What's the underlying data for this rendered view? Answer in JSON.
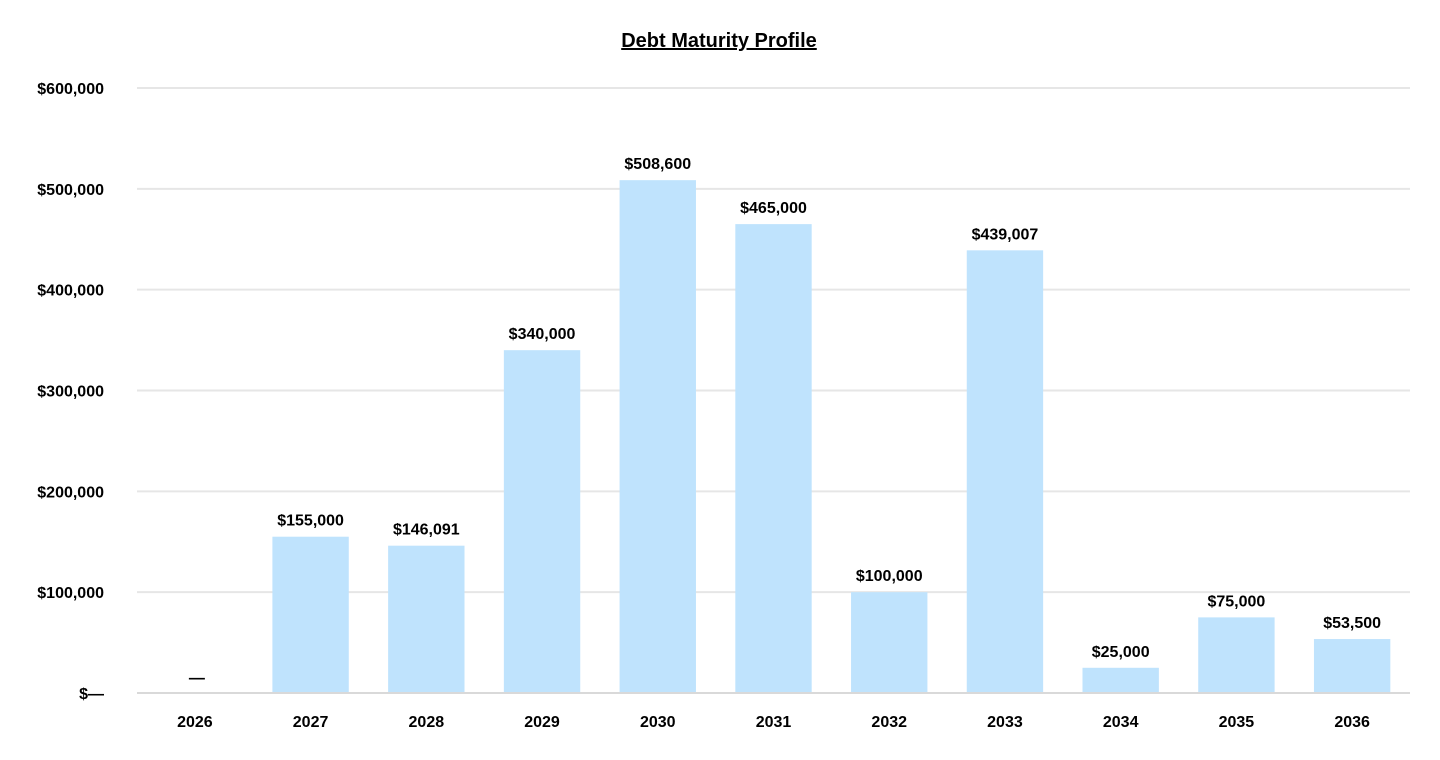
{
  "chart_data": {
    "type": "bar",
    "title": "Debt Maturity Profile",
    "xlabel": "",
    "ylabel": "",
    "categories": [
      "2026",
      "2027",
      "2028",
      "2029",
      "2030",
      "2031",
      "2032",
      "2033",
      "2034",
      "2035",
      "2036"
    ],
    "values": [
      0,
      155000,
      146091,
      340000,
      508600,
      465000,
      100000,
      439007,
      25000,
      75000,
      53500
    ],
    "data_labels": [
      "—",
      "$155,000",
      "$146,091",
      "$340,000",
      "$508,600",
      "$465,000",
      "$100,000",
      "$439,007",
      "$25,000",
      "$75,000",
      "$53,500"
    ],
    "ylim": [
      0,
      600000
    ],
    "yticks": [
      0,
      100000,
      200000,
      300000,
      400000,
      500000,
      600000
    ],
    "ytick_labels": [
      "$—",
      "$100,000",
      "$200,000",
      "$300,000",
      "$400,000",
      "$500,000",
      "$600,000"
    ],
    "grid": true,
    "legend": "none",
    "colors": {
      "bar": "#bfe3fd",
      "grid": "#e6e6e6",
      "text": "#000000"
    }
  }
}
